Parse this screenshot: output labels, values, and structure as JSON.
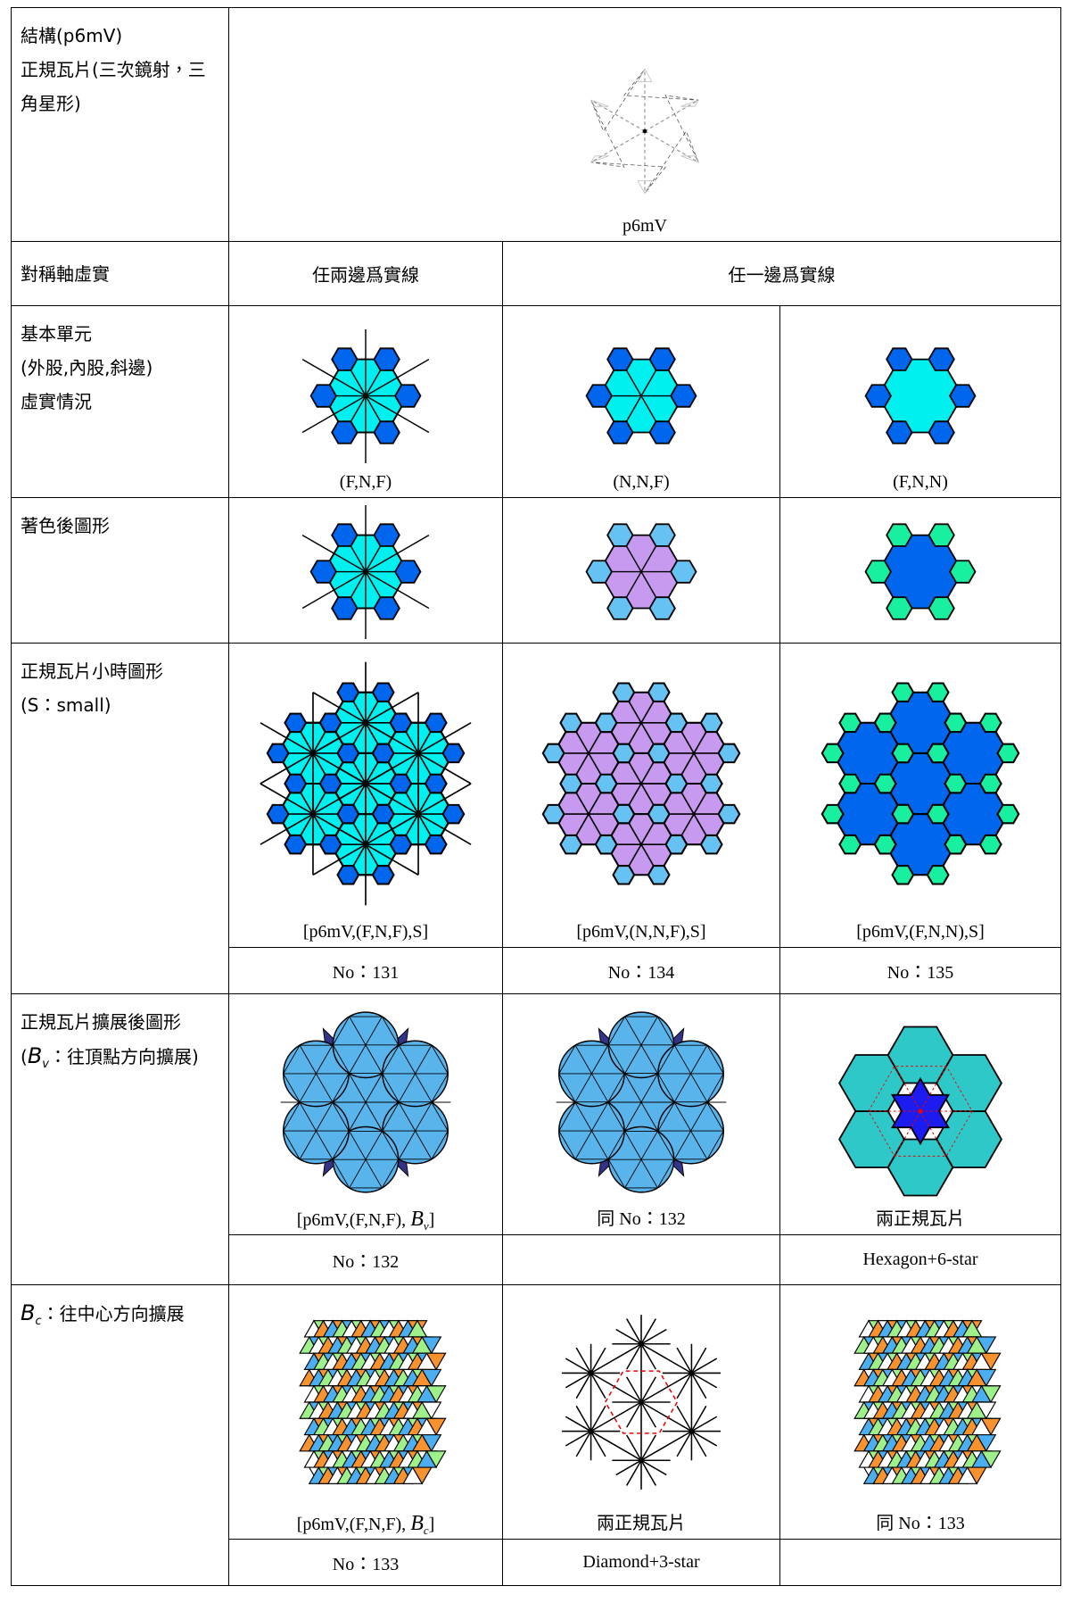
{
  "structure": {
    "lines": [
      "結構(p6mV)",
      "正規瓦片(三次鏡射，三角星形)"
    ],
    "caption": "p6mV"
  },
  "symmetry": {
    "label": "對稱軸虛實",
    "headers": [
      "任兩邊爲實線",
      "任一邊爲實線"
    ]
  },
  "basic": {
    "label_lines": [
      "基本單元",
      "(外股,內股,斜邊)",
      "虛實情況"
    ],
    "captions": [
      "(F,N,F)",
      "(N,N,F)",
      "(F,N,N)"
    ]
  },
  "colored": {
    "label": "著色後圖形"
  },
  "small": {
    "label_lines": [
      "正規瓦片小時圖形",
      "(S：small)"
    ],
    "captions": [
      "[p6mV,(F,N,F),S]",
      "[p6mV,(N,N,F),S]",
      "[p6mV,(F,N,N),S]"
    ],
    "numbers": [
      "No：131",
      "No：134",
      "No：135"
    ]
  },
  "vertex": {
    "label": "正規瓦片擴展後圖形",
    "label_formula": {
      "before": "(",
      "symbol": "B",
      "sub": "v",
      "after": "：往頂點方向擴展)"
    },
    "caption_formula": {
      "before": "[p6mV,(F,N,F), ",
      "symbol": "B",
      "sub": "v",
      "after": "]"
    },
    "captions": [
      "同 No：132",
      "兩正規瓦片"
    ],
    "numbers": [
      "No：132",
      null,
      "Hexagon+6-star"
    ]
  },
  "center": {
    "label_formula": {
      "symbol": "B",
      "sub": "c",
      "after": "：往中心方向擴展"
    },
    "caption_formula": {
      "before": "[p6mV,(F,N,F), ",
      "symbol": "B",
      "sub": "c",
      "after": "]"
    },
    "captions": [
      "兩正規瓦片",
      "同 No：133"
    ],
    "numbers": [
      "No：133",
      "Diamond+3-star",
      null
    ]
  }
}
